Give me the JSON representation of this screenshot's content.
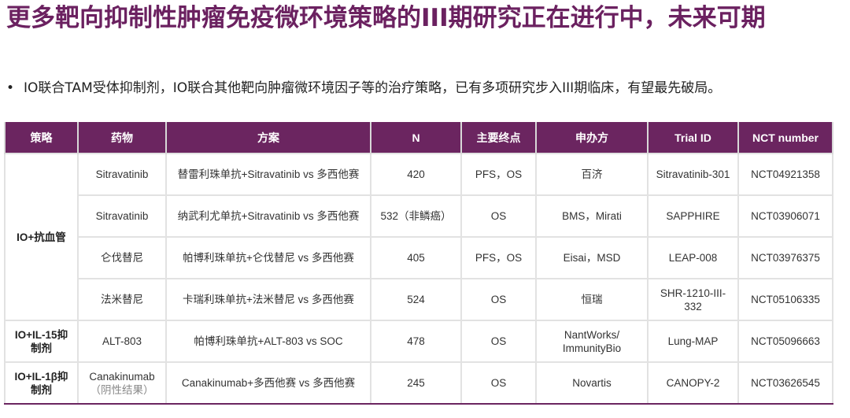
{
  "title": "更多靶向抑制性肿瘤免疫微环境策略的III期研究正在进行中，未来可期",
  "bullet": "IO联合TAM受体抑制剂，IO联合其他靶向肿瘤微环境因子等的治疗策略，已有多项研究步入III期临床，有望最先破局。",
  "colors": {
    "accent": "#6b2160",
    "header_bg": "#6b2560"
  },
  "table": {
    "headers": [
      "策略",
      "药物",
      "方案",
      "N",
      "主要终点",
      "申办方",
      "Trial ID",
      "NCT number"
    ],
    "strategies": [
      "IO+抗血管",
      "IO+IL-15抑制剂",
      "IO+IL-1β抑制剂"
    ],
    "rows": [
      {
        "drug": "Sitravatinib",
        "regimen": "替雷利珠单抗+Sitravatinib vs 多西他赛",
        "n": "420",
        "endpoint": "PFS，OS",
        "sponsor": "百济",
        "trial_id": "Sitravatinib-301",
        "nct": "NCT04921358"
      },
      {
        "drug": "Sitravatinib",
        "regimen": "纳武利尤单抗+Sitravatinib vs 多西他赛",
        "n": "532（非鳞癌）",
        "endpoint": "OS",
        "sponsor": "BMS，Mirati",
        "trial_id": "SAPPHIRE",
        "nct": "NCT03906071"
      },
      {
        "drug": "仑伐替尼",
        "regimen": "帕博利珠单抗+仑伐替尼 vs 多西他赛",
        "n": "405",
        "endpoint": "PFS，OS",
        "sponsor": "Eisai，MSD",
        "trial_id": "LEAP-008",
        "nct": "NCT03976375"
      },
      {
        "drug": "法米替尼",
        "regimen": "卡瑞利珠单抗+法米替尼 vs 多西他赛",
        "n": "524",
        "endpoint": "OS",
        "sponsor": "恒瑞",
        "trial_id": "SHR-1210-III-332",
        "nct": "NCT05106335"
      },
      {
        "drug": "ALT-803",
        "regimen": "帕博利珠单抗+ALT-803 vs SOC",
        "n": "478",
        "endpoint": "OS",
        "sponsor": "NantWorks/ ImmunityBio",
        "trial_id": "Lung-MAP",
        "nct": "NCT05096663"
      },
      {
        "drug": "Canakinumab",
        "drug_note": "（阴性结果）",
        "regimen": "Canakinumab+多西他赛 vs 多西他赛",
        "n": "245",
        "endpoint": "OS",
        "sponsor": "Novartis",
        "trial_id": "CANOPY-2",
        "nct": "NCT03626545"
      }
    ]
  }
}
